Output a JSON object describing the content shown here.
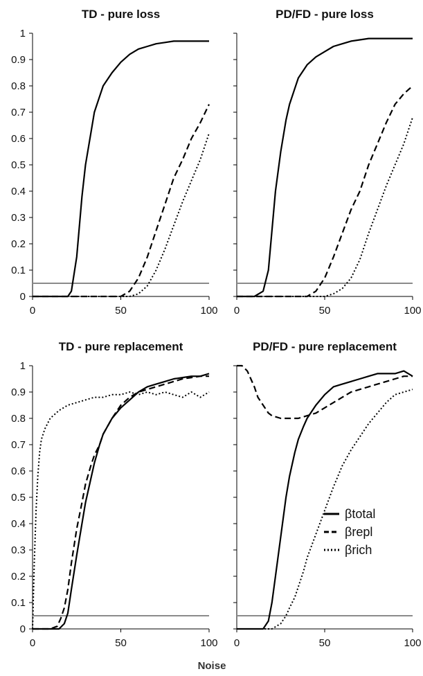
{
  "figure": {
    "xlabel": "Noise"
  },
  "chart_data": [
    {
      "type": "line",
      "title": "TD - pure loss",
      "xlim": [
        0,
        100
      ],
      "ylim": [
        0,
        1
      ],
      "xticks": [
        0,
        50,
        100
      ],
      "yticks": [
        0,
        0.1,
        0.2,
        0.3,
        0.4,
        0.5,
        0.6,
        0.7,
        0.8,
        0.9,
        1
      ],
      "threshold": 0.05,
      "series": [
        {
          "name": "βtotal",
          "style": "solid",
          "x": [
            0,
            10,
            20,
            22,
            25,
            28,
            30,
            33,
            35,
            38,
            40,
            45,
            50,
            55,
            60,
            65,
            70,
            75,
            80,
            85,
            90,
            95,
            100
          ],
          "y": [
            0,
            0,
            0,
            0.02,
            0.15,
            0.38,
            0.5,
            0.62,
            0.7,
            0.76,
            0.8,
            0.85,
            0.89,
            0.92,
            0.94,
            0.95,
            0.96,
            0.965,
            0.97,
            0.97,
            0.97,
            0.97,
            0.97
          ]
        },
        {
          "name": "βrepl",
          "style": "dashed",
          "x": [
            0,
            10,
            20,
            30,
            40,
            45,
            50,
            55,
            60,
            65,
            70,
            75,
            80,
            85,
            90,
            95,
            100
          ],
          "y": [
            0,
            0,
            0,
            0,
            0,
            0,
            0,
            0.02,
            0.07,
            0.15,
            0.25,
            0.35,
            0.45,
            0.52,
            0.6,
            0.66,
            0.73
          ]
        },
        {
          "name": "βrich",
          "style": "dotted",
          "x": [
            0,
            10,
            20,
            30,
            40,
            50,
            55,
            60,
            65,
            70,
            75,
            80,
            85,
            90,
            95,
            100
          ],
          "y": [
            0,
            0,
            0,
            0,
            0,
            0,
            0,
            0.01,
            0.04,
            0.1,
            0.18,
            0.27,
            0.36,
            0.44,
            0.52,
            0.62
          ]
        }
      ]
    },
    {
      "type": "line",
      "title": "PD/FD - pure loss",
      "xlim": [
        0,
        100
      ],
      "ylim": [
        0,
        1
      ],
      "xticks": [
        0,
        50,
        100
      ],
      "yticks": [
        0,
        0.1,
        0.2,
        0.3,
        0.4,
        0.5,
        0.6,
        0.7,
        0.8,
        0.9,
        1
      ],
      "threshold": 0.05,
      "series": [
        {
          "name": "βtotal",
          "style": "solid",
          "x": [
            0,
            10,
            15,
            18,
            20,
            22,
            25,
            28,
            30,
            33,
            35,
            40,
            45,
            50,
            55,
            60,
            65,
            70,
            75,
            80,
            85,
            90,
            95,
            100
          ],
          "y": [
            0,
            0,
            0.02,
            0.1,
            0.25,
            0.4,
            0.55,
            0.67,
            0.73,
            0.79,
            0.83,
            0.88,
            0.91,
            0.93,
            0.95,
            0.96,
            0.97,
            0.975,
            0.98,
            0.98,
            0.98,
            0.98,
            0.98,
            0.98
          ]
        },
        {
          "name": "βrepl",
          "style": "dashed",
          "x": [
            0,
            10,
            20,
            30,
            40,
            45,
            50,
            55,
            60,
            65,
            70,
            75,
            80,
            85,
            90,
            95,
            100
          ],
          "y": [
            0,
            0,
            0,
            0,
            0,
            0.02,
            0.07,
            0.15,
            0.24,
            0.33,
            0.4,
            0.5,
            0.58,
            0.66,
            0.73,
            0.77,
            0.8
          ]
        },
        {
          "name": "βrich",
          "style": "dotted",
          "x": [
            0,
            10,
            20,
            30,
            40,
            50,
            55,
            60,
            65,
            70,
            75,
            80,
            85,
            90,
            95,
            100
          ],
          "y": [
            0,
            0,
            0,
            0,
            0,
            0,
            0.01,
            0.03,
            0.07,
            0.14,
            0.24,
            0.33,
            0.42,
            0.5,
            0.58,
            0.68
          ]
        }
      ]
    },
    {
      "type": "line",
      "title": "TD - pure replacement",
      "xlim": [
        0,
        100
      ],
      "ylim": [
        0,
        1
      ],
      "xticks": [
        0,
        50,
        100
      ],
      "yticks": [
        0,
        0.1,
        0.2,
        0.3,
        0.4,
        0.5,
        0.6,
        0.7,
        0.8,
        0.9,
        1
      ],
      "threshold": 0.05,
      "series": [
        {
          "name": "βtotal",
          "style": "solid",
          "x": [
            0,
            10,
            15,
            18,
            20,
            22,
            25,
            28,
            30,
            33,
            35,
            38,
            40,
            45,
            50,
            55,
            60,
            65,
            70,
            75,
            80,
            85,
            90,
            95,
            100
          ],
          "y": [
            0,
            0,
            0,
            0.02,
            0.06,
            0.15,
            0.28,
            0.4,
            0.48,
            0.57,
            0.63,
            0.7,
            0.74,
            0.8,
            0.84,
            0.87,
            0.9,
            0.92,
            0.93,
            0.94,
            0.95,
            0.955,
            0.96,
            0.96,
            0.97
          ]
        },
        {
          "name": "βrepl",
          "style": "dashed",
          "x": [
            0,
            10,
            14,
            16,
            18,
            20,
            22,
            25,
            28,
            30,
            33,
            35,
            38,
            40,
            45,
            50,
            55,
            60,
            65,
            70,
            75,
            80,
            85,
            90,
            95,
            100
          ],
          "y": [
            0,
            0,
            0.01,
            0.04,
            0.08,
            0.15,
            0.25,
            0.38,
            0.48,
            0.55,
            0.62,
            0.66,
            0.7,
            0.74,
            0.8,
            0.85,
            0.88,
            0.9,
            0.91,
            0.92,
            0.93,
            0.94,
            0.95,
            0.955,
            0.96,
            0.96
          ]
        },
        {
          "name": "βrich",
          "style": "dotted",
          "x": [
            0,
            1,
            2,
            3,
            4,
            5,
            7,
            10,
            15,
            20,
            25,
            30,
            35,
            40,
            45,
            50,
            55,
            60,
            65,
            70,
            75,
            80,
            85,
            90,
            95,
            100
          ],
          "y": [
            0,
            0.25,
            0.45,
            0.58,
            0.67,
            0.72,
            0.76,
            0.8,
            0.83,
            0.85,
            0.86,
            0.87,
            0.88,
            0.88,
            0.89,
            0.89,
            0.9,
            0.89,
            0.9,
            0.89,
            0.9,
            0.89,
            0.88,
            0.9,
            0.88,
            0.9
          ]
        }
      ]
    },
    {
      "type": "line",
      "title": "PD/FD - pure replacement",
      "xlim": [
        0,
        100
      ],
      "ylim": [
        0,
        1
      ],
      "xticks": [
        0,
        50,
        100
      ],
      "yticks": [
        0,
        0.1,
        0.2,
        0.3,
        0.4,
        0.5,
        0.6,
        0.7,
        0.8,
        0.9,
        1
      ],
      "threshold": 0.05,
      "series": [
        {
          "name": "βtotal",
          "style": "solid",
          "x": [
            0,
            10,
            15,
            18,
            20,
            22,
            25,
            28,
            30,
            33,
            35,
            38,
            40,
            45,
            50,
            55,
            60,
            65,
            70,
            75,
            80,
            85,
            90,
            95,
            100
          ],
          "y": [
            0,
            0,
            0,
            0.03,
            0.1,
            0.2,
            0.35,
            0.5,
            0.58,
            0.67,
            0.72,
            0.77,
            0.8,
            0.85,
            0.89,
            0.92,
            0.93,
            0.94,
            0.95,
            0.96,
            0.97,
            0.97,
            0.97,
            0.98,
            0.96
          ]
        },
        {
          "name": "βrepl",
          "style": "dashed",
          "x": [
            0,
            3,
            6,
            8,
            10,
            12,
            15,
            18,
            20,
            25,
            30,
            35,
            40,
            45,
            50,
            55,
            60,
            65,
            70,
            75,
            80,
            85,
            90,
            95,
            100
          ],
          "y": [
            1,
            1,
            0.98,
            0.95,
            0.92,
            0.88,
            0.85,
            0.82,
            0.81,
            0.8,
            0.8,
            0.8,
            0.81,
            0.82,
            0.84,
            0.86,
            0.88,
            0.9,
            0.91,
            0.92,
            0.93,
            0.94,
            0.95,
            0.96,
            0.96
          ]
        },
        {
          "name": "βrich",
          "style": "dotted",
          "x": [
            0,
            10,
            20,
            25,
            28,
            30,
            33,
            35,
            38,
            40,
            45,
            50,
            55,
            60,
            65,
            70,
            75,
            80,
            85,
            90,
            95,
            100
          ],
          "y": [
            0,
            0,
            0,
            0.02,
            0.05,
            0.08,
            0.12,
            0.16,
            0.22,
            0.27,
            0.36,
            0.45,
            0.54,
            0.62,
            0.68,
            0.73,
            0.78,
            0.82,
            0.86,
            0.89,
            0.9,
            0.91
          ]
        }
      ]
    }
  ],
  "legend": {
    "items": [
      {
        "label": "βtotal",
        "style": "solid"
      },
      {
        "label": "βrepl",
        "style": "dashed"
      },
      {
        "label": "βrich",
        "style": "dotted"
      }
    ]
  }
}
